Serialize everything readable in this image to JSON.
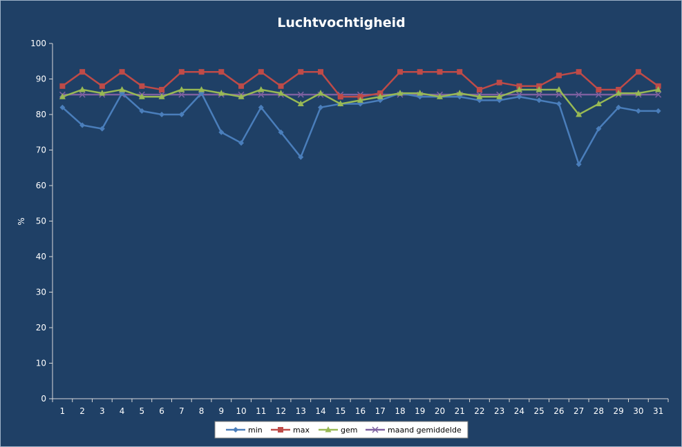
{
  "chart_data": {
    "type": "line",
    "title": "Luchtvochtigheid",
    "xlabel": "",
    "ylabel": "%",
    "ylim": [
      0,
      100
    ],
    "yticks": [
      0,
      10,
      20,
      30,
      40,
      50,
      60,
      70,
      80,
      90,
      100
    ],
    "categories": [
      "1",
      "2",
      "3",
      "4",
      "5",
      "6",
      "7",
      "8",
      "9",
      "10",
      "11",
      "12",
      "13",
      "14",
      "15",
      "16",
      "17",
      "18",
      "19",
      "20",
      "21",
      "22",
      "23",
      "24",
      "25",
      "26",
      "27",
      "28",
      "29",
      "30",
      "31"
    ],
    "grid": false,
    "legend_position": "bottom",
    "series": [
      {
        "name": "min",
        "color": "#4a7ebb",
        "marker": "diamond",
        "values": [
          82,
          77,
          76,
          86,
          81,
          80,
          80,
          86,
          75,
          72,
          82,
          75,
          68,
          82,
          83,
          83,
          84,
          86,
          85,
          85,
          85,
          84,
          84,
          85,
          84,
          83,
          66,
          76,
          82,
          81,
          81
        ]
      },
      {
        "name": "max",
        "color": "#be4b48",
        "marker": "square",
        "values": [
          88,
          92,
          88,
          92,
          88,
          87,
          92,
          92,
          92,
          88,
          92,
          88,
          92,
          92,
          85,
          85,
          86,
          92,
          92,
          92,
          92,
          87,
          89,
          88,
          88,
          91,
          92,
          87,
          87,
          92,
          88
        ]
      },
      {
        "name": "gem",
        "color": "#98b954",
        "marker": "triangle",
        "values": [
          85,
          87,
          86,
          87,
          85,
          85,
          87,
          87,
          86,
          85,
          87,
          86,
          83,
          86,
          83,
          84,
          85,
          86,
          86,
          85,
          86,
          85,
          85,
          87,
          87,
          87,
          80,
          83,
          86,
          86,
          87
        ]
      },
      {
        "name": "maand gemiddelde",
        "color": "#7d60a0",
        "marker": "x",
        "values": [
          85.6,
          85.6,
          85.6,
          85.6,
          85.6,
          85.6,
          85.6,
          85.6,
          85.6,
          85.6,
          85.6,
          85.6,
          85.6,
          85.6,
          85.6,
          85.6,
          85.6,
          85.6,
          85.6,
          85.6,
          85.6,
          85.6,
          85.6,
          85.6,
          85.6,
          85.6,
          85.6,
          85.6,
          85.6,
          85.6,
          85.6
        ]
      }
    ]
  }
}
